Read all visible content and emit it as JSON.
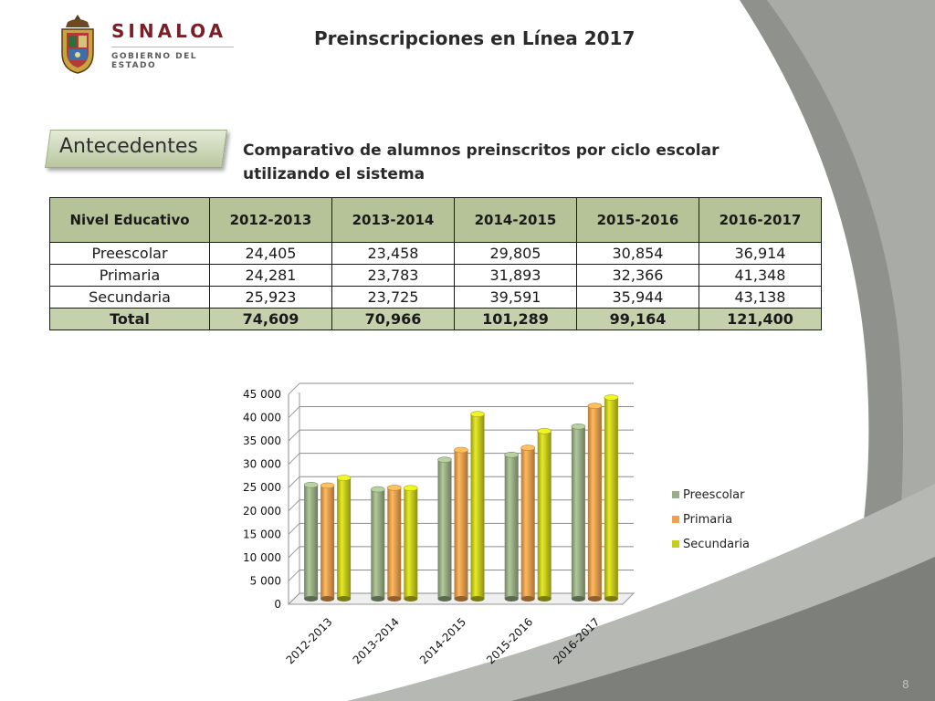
{
  "header": {
    "brand_name": "SINALOA",
    "brand_sub": "GOBIERNO DEL ESTADO",
    "title": "Preinscripciones en Línea 2017"
  },
  "section": {
    "tag": "Antecedentes",
    "subtitle_line1": "Comparativo de alumnos preinscritos por ciclo escolar",
    "subtitle_line2": "utilizando el sistema"
  },
  "table": {
    "headers": [
      "Nivel Educativo",
      "2012-2013",
      "2013-2014",
      "2014-2015",
      "2015-2016",
      "2016-2017"
    ],
    "rows": [
      [
        "Preescolar",
        "24,405",
        "23,458",
        "29,805",
        "30,854",
        "36,914"
      ],
      [
        "Primaria",
        "24,281",
        "23,783",
        "31,893",
        "32,366",
        "41,348"
      ],
      [
        "Secundaria",
        "25,923",
        "23,725",
        "39,591",
        "35,944",
        "43,138"
      ]
    ],
    "total": [
      "Total",
      "74,609",
      "70,966",
      "101,289",
      "99,164",
      "121,400"
    ]
  },
  "chart_data": {
    "type": "bar",
    "categories": [
      "2012-2013",
      "2013-2014",
      "2014-2015",
      "2015-2016",
      "2016-2017"
    ],
    "series": [
      {
        "name": "Preescolar",
        "values": [
          24405,
          23458,
          29805,
          30854,
          36914
        ],
        "color": "#9aaf86"
      },
      {
        "name": "Primaria",
        "values": [
          24281,
          23783,
          31893,
          32366,
          41348
        ],
        "color": "#f0a050"
      },
      {
        "name": "Secundaria",
        "values": [
          25923,
          23725,
          39591,
          35944,
          43138
        ],
        "color": "#c8cc1e"
      }
    ],
    "ylim": [
      0,
      45000
    ],
    "yticks": [
      0,
      5000,
      10000,
      15000,
      20000,
      25000,
      30000,
      35000,
      40000,
      45000
    ],
    "ytick_labels": [
      "0",
      "5 000",
      "10 000",
      "15 000",
      "20 000",
      "25 000",
      "30 000",
      "35 000",
      "40 000",
      "45 000"
    ],
    "grid": true,
    "legend": "right",
    "style": "3d-cylinder"
  },
  "footer": {
    "page_number": "8"
  },
  "colors": {
    "accent_green": "#b6c399",
    "brand_red": "#7a1f27",
    "background_gray": "#8a8c88"
  }
}
